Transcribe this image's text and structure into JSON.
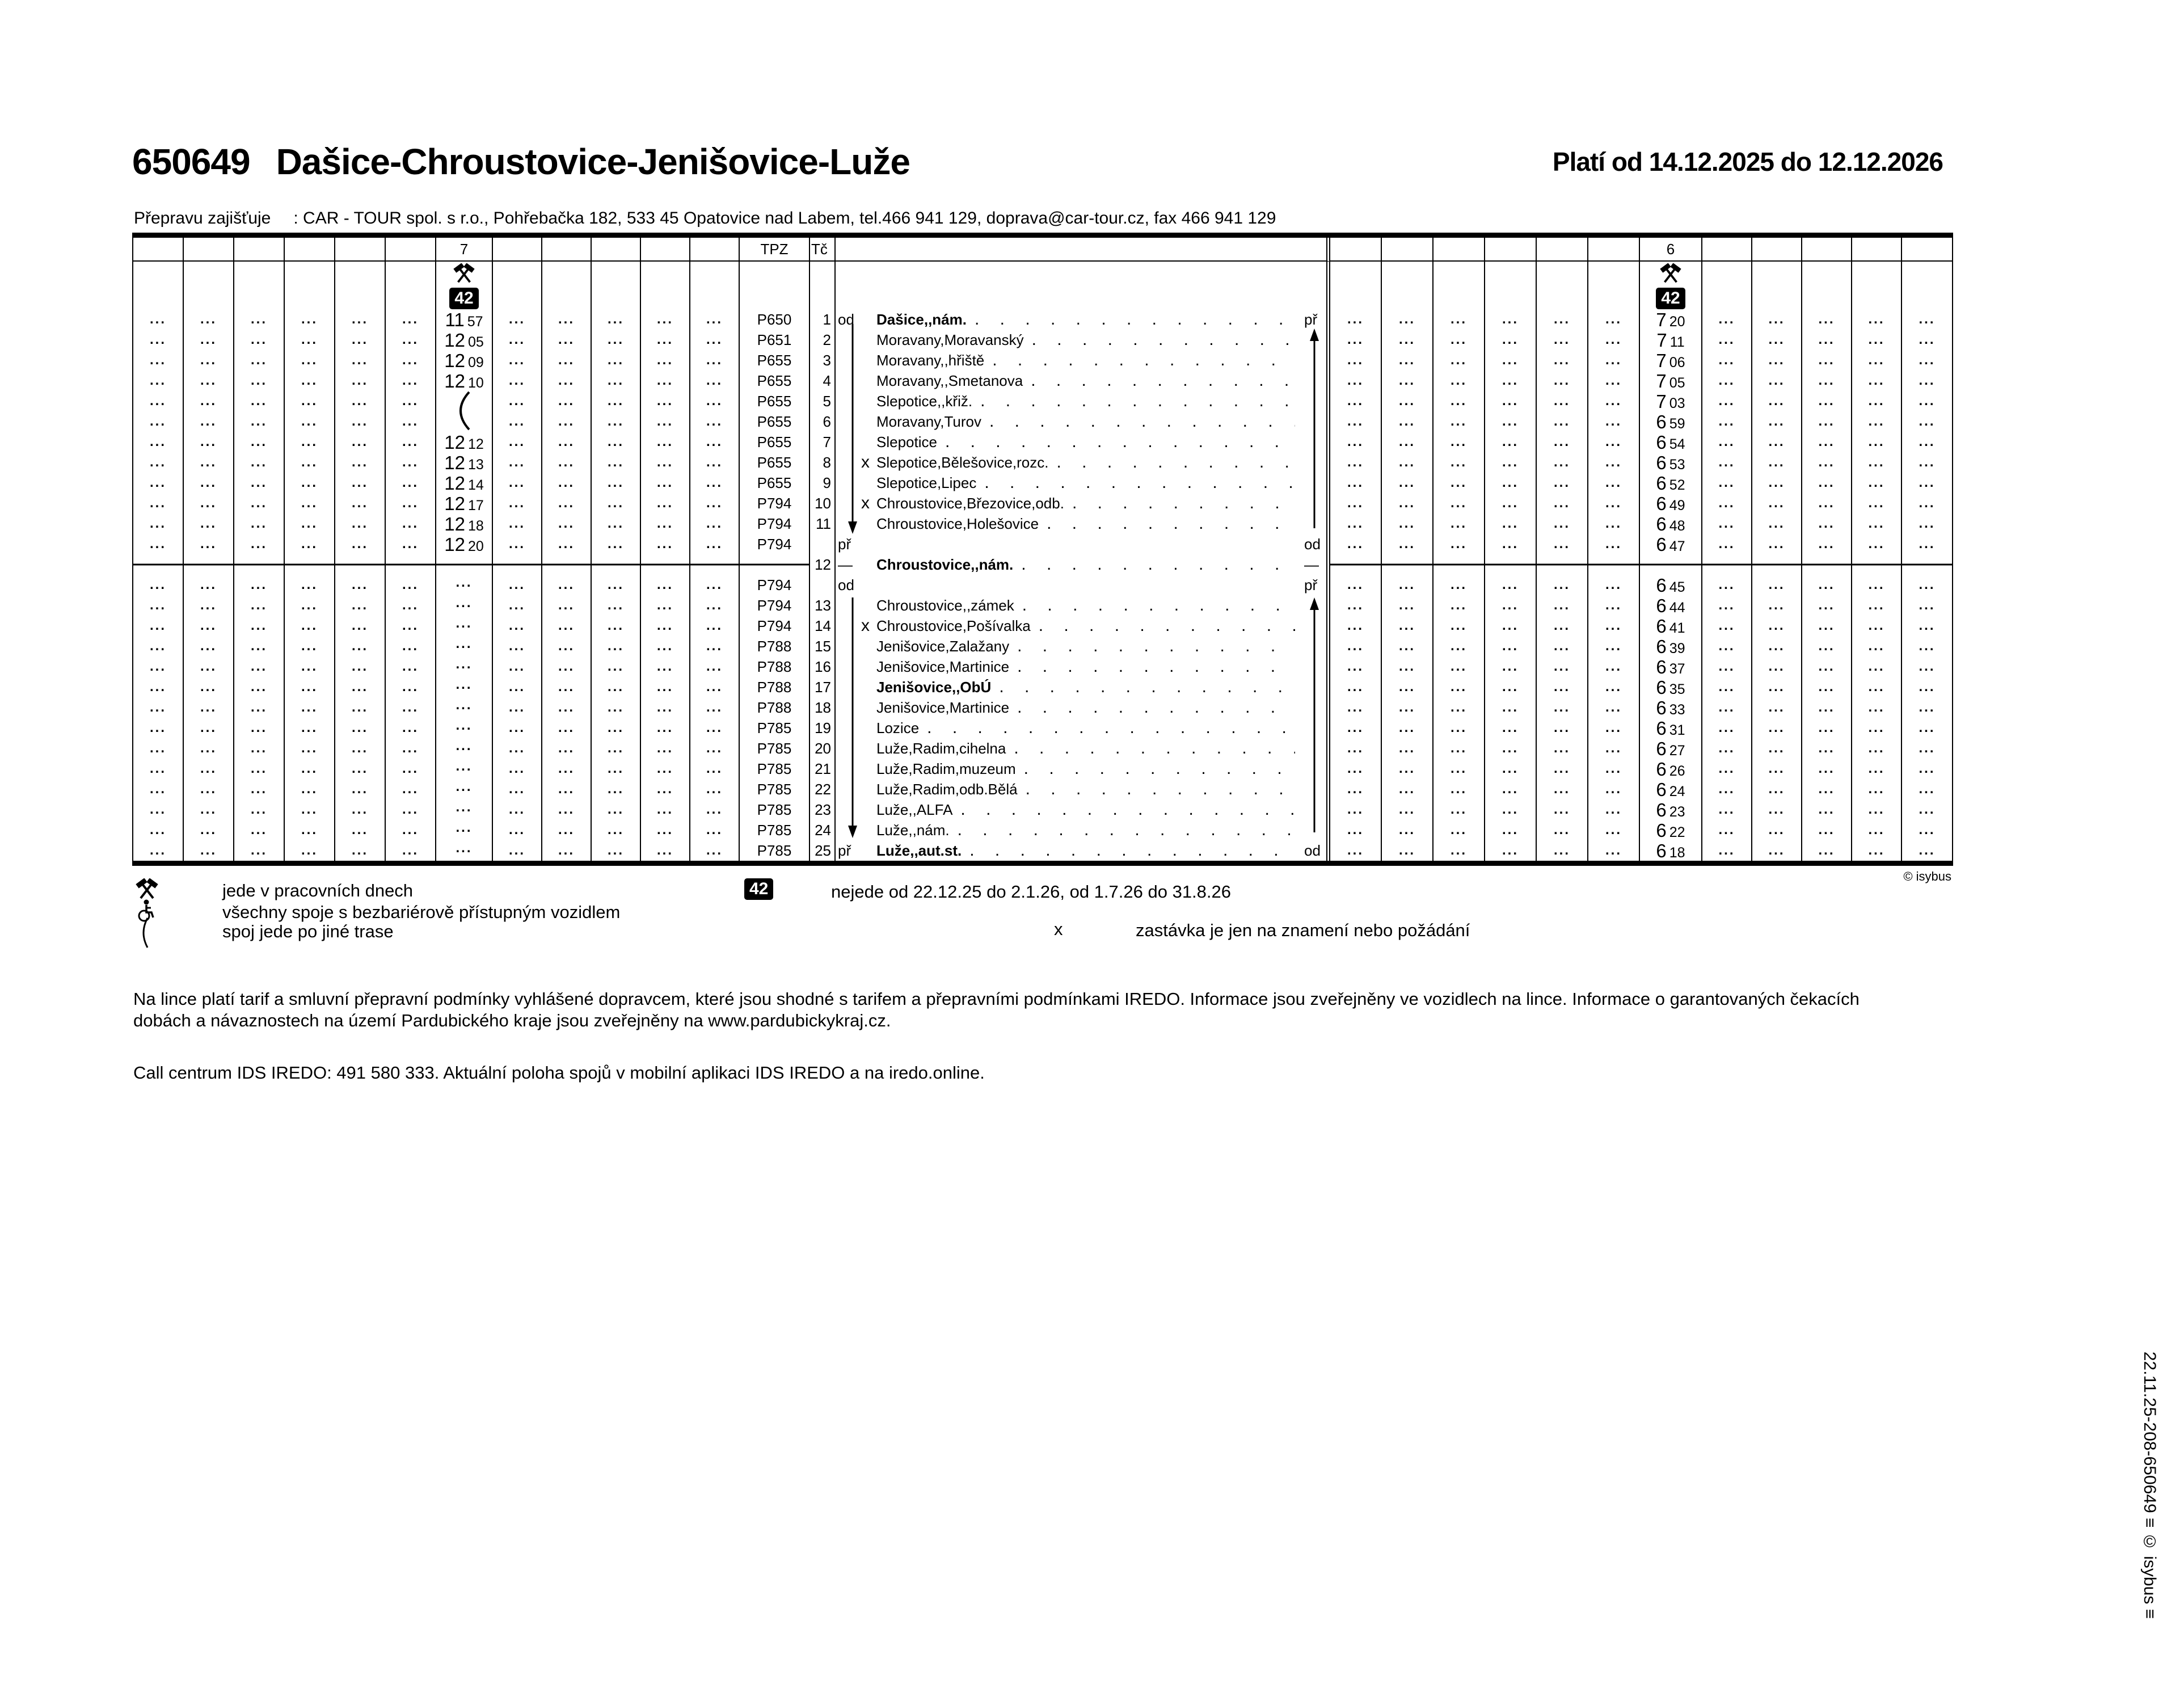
{
  "page": {
    "line_number": "650649",
    "route_title": "Dašice-Chroustovice-Jenišovice-Luže",
    "validity": "Platí od 14.12.2025 do 12.12.2026",
    "operator_label": "Přepravu zajišťuje",
    "operator_value": ": CAR - TOUR spol. s r.o., Pohřebačka 182, 533 45 Opatovice nad Labem, tel.466 941 129, doprava@car-tour.cz, fax 466 941 129",
    "table_copyright": "© isybus",
    "side_note": "22.11.25-208-650649 ≡ © isybus ≡"
  },
  "table": {
    "header": {
      "left_trip": "7",
      "tpz": "TPZ",
      "tc": "Tč",
      "right_trip": "6"
    },
    "symbols": {
      "workdays_icon": "crossed-hammers",
      "note_badge": "42"
    },
    "rows": [
      {
        "tc": "1",
        "tpz": "P650",
        "ll": "od",
        "name": "Dašice,,nám.",
        "bold": true,
        "lr": "př",
        "t7": "11 57",
        "t6": "7 20"
      },
      {
        "tc": "2",
        "tpz": "P651",
        "name": "Moravany,Moravanský",
        "t7": "12 05",
        "t6": "7 11"
      },
      {
        "tc": "3",
        "tpz": "P655",
        "name": "Moravany,,hřiště",
        "t7": "12 09",
        "t6": "7 06"
      },
      {
        "tc": "4",
        "tpz": "P655",
        "name": "Moravany,,Smetanova",
        "t7": "12 10",
        "t6": "7 05"
      },
      {
        "tc": "5",
        "tpz": "P655",
        "name": "Slepotice,,křiž.",
        "t7": "~",
        "t6": "7 03"
      },
      {
        "tc": "6",
        "tpz": "P655",
        "name": "Moravany,Turov",
        "t7": "~",
        "t6": "6 59"
      },
      {
        "tc": "7",
        "tpz": "P655",
        "name": "Slepotice",
        "t7": "12 12",
        "t6": "6 54"
      },
      {
        "tc": "8",
        "tpz": "P655",
        "x": true,
        "name": "Slepotice,Bělešovice,rozc.",
        "t7": "12 13",
        "t6": "6 53"
      },
      {
        "tc": "9",
        "tpz": "P655",
        "name": "Slepotice,Lipec",
        "t7": "12 14",
        "t6": "6 52"
      },
      {
        "tc": "10",
        "tpz": "P794",
        "x": true,
        "name": "Chroustovice,Březovice,odb.",
        "t7": "12 17",
        "t6": "6 49"
      },
      {
        "tc": "11",
        "tpz": "P794",
        "name": "Chroustovice,Holešovice",
        "t7": "12 18",
        "t6": "6 48"
      },
      {
        "tpz": "P794",
        "ll": "př",
        "lr": "od",
        "t7": "12 20",
        "t6": "6 47",
        "leader": false
      },
      {
        "tc": "12",
        "ll": "—",
        "name": "Chroustovice,,nám.",
        "bold": true,
        "lr": "—",
        "t7": null,
        "t6": null,
        "fill": false
      },
      {
        "tpz": "P794",
        "ll": "od",
        "lr": "př",
        "t7": "...",
        "t6": "6 45",
        "leader": false
      },
      {
        "tc": "13",
        "tpz": "P794",
        "name": "Chroustovice,,zámek",
        "t7": "...",
        "t6": "6 44"
      },
      {
        "tc": "14",
        "tpz": "P794",
        "x": true,
        "name": "Chroustovice,Pošívalka",
        "t7": "...",
        "t6": "6 41"
      },
      {
        "tc": "15",
        "tpz": "P788",
        "name": "Jenišovice,Zalažany",
        "t7": "...",
        "t6": "6 39"
      },
      {
        "tc": "16",
        "tpz": "P788",
        "name": "Jenišovice,Martinice",
        "t7": "...",
        "t6": "6 37"
      },
      {
        "tc": "17",
        "tpz": "P788",
        "name": "Jenišovice,,ObÚ",
        "bold": true,
        "t7": "...",
        "t6": "6 35"
      },
      {
        "tc": "18",
        "tpz": "P788",
        "name": "Jenišovice,Martinice",
        "t7": "...",
        "t6": "6 33"
      },
      {
        "tc": "19",
        "tpz": "P785",
        "name": "Lozice",
        "t7": "...",
        "t6": "6 31"
      },
      {
        "tc": "20",
        "tpz": "P785",
        "name": "Luže,Radim,cihelna",
        "t7": "...",
        "t6": "6 27"
      },
      {
        "tc": "21",
        "tpz": "P785",
        "name": "Luže,Radim,muzeum",
        "t7": "...",
        "t6": "6 26"
      },
      {
        "tc": "22",
        "tpz": "P785",
        "name": "Luže,Radim,odb.Bělá",
        "t7": "...",
        "t6": "6 24"
      },
      {
        "tc": "23",
        "tpz": "P785",
        "name": "Luže,,ALFA",
        "t7": "...",
        "t6": "6 23"
      },
      {
        "tc": "24",
        "tpz": "P785",
        "name": "Luže,,nám.",
        "t7": "...",
        "t6": "6 22"
      },
      {
        "tc": "25",
        "tpz": "P785",
        "ll": "př",
        "name": "Luže,,aut.st.",
        "bold": true,
        "lr": "od",
        "t7": "...",
        "t6": "6 18"
      }
    ]
  },
  "legend": {
    "items": [
      {
        "icon": "crossed-hammers-icon",
        "text": "jede v pracovních dnech"
      },
      {
        "icon": "wheelchair-icon",
        "text": "všechny spoje  s bezbariérově přístupným vozidlem"
      },
      {
        "icon": "alt-route-icon",
        "text": "spoj jede po jiné trase"
      }
    ],
    "badge": {
      "label": "42",
      "text": "nejede od 22.12.25 do 2.1.26, od 1.7.26 do 31.8.26"
    },
    "request_stop": {
      "symbol": "x",
      "text": "zastávka je jen na znamení nebo požádání"
    }
  },
  "notes": {
    "tariff": "Na lince platí tarif a smluvní přepravní podmínky vyhlášené dopravcem, které jsou shodné s tarifem a přepravními podmínkami IREDO. Informace jsou zveřejněny ve vozidlech na lince. Informace o garantovaných čekacích dobách a návaznostech na území Pardubického kraje jsou zveřejněny na www.pardubickykraj.cz.",
    "call_center": "Call centrum IDS IREDO: 491 580 333. Aktuální poloha spojů v mobilní aplikaci IDS IREDO a na iredo.online."
  }
}
